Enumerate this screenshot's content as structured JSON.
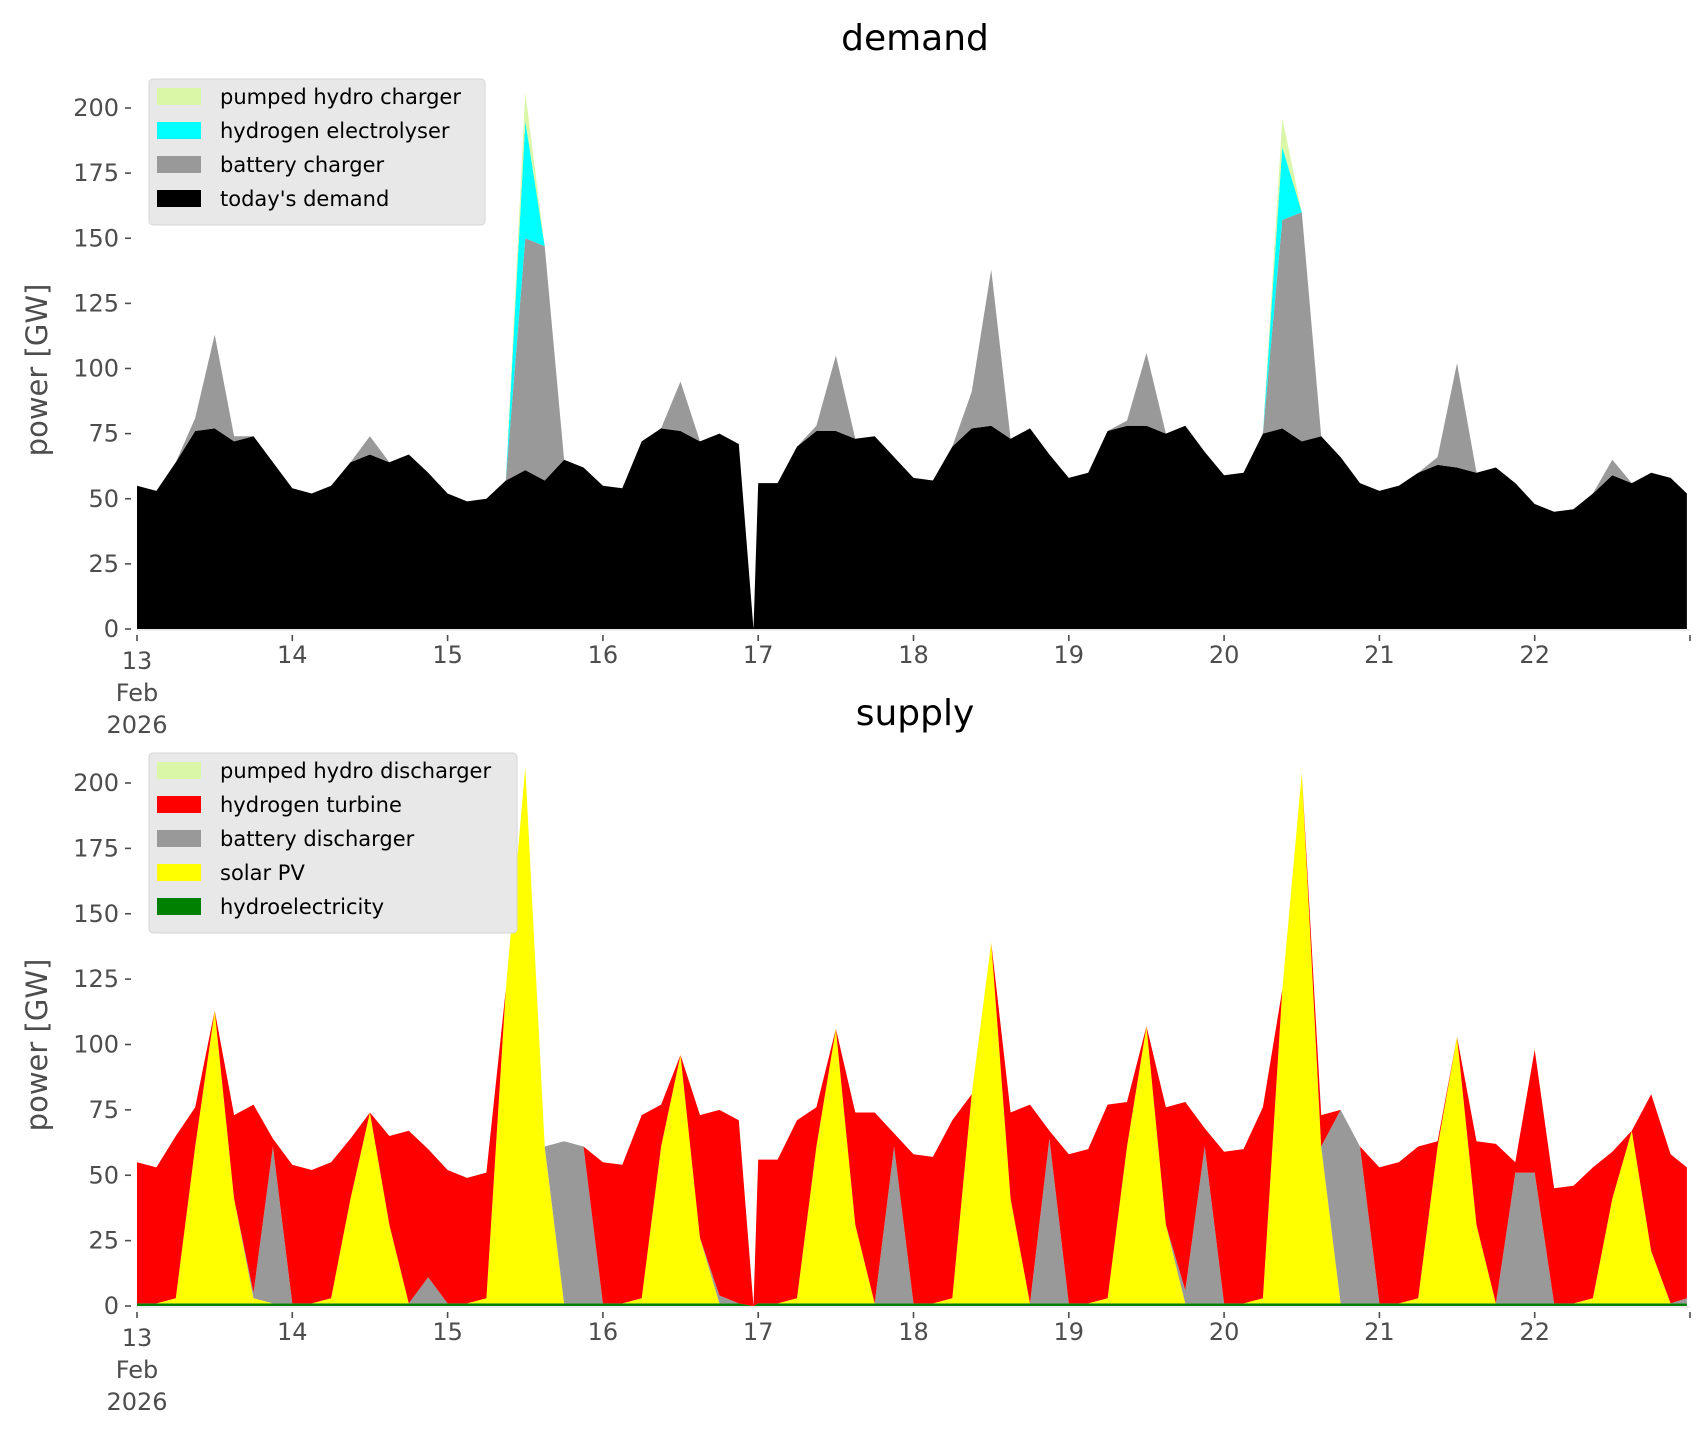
{
  "chart_data": [
    {
      "type": "area",
      "stacked": true,
      "title": "demand",
      "xlabel": "",
      "ylabel": "power [GW]",
      "ylim": [
        0,
        210
      ],
      "xlim": [
        13,
        23
      ],
      "yticks": [
        0,
        25,
        50,
        75,
        100,
        125,
        150,
        175,
        200
      ],
      "xticks": [
        13,
        14,
        15,
        16,
        17,
        18,
        19,
        20,
        21,
        22,
        23
      ],
      "xtick_labels": [
        "13",
        "14",
        "15",
        "16",
        "17",
        "18",
        "19",
        "20",
        "21",
        "22",
        ""
      ],
      "xtick_sub_labels": [
        "Feb",
        "2026"
      ],
      "grid": false,
      "legend_position": "top-left",
      "gaps": [
        [
          16.875,
          16.97
        ]
      ],
      "x": [
        13.0,
        13.125,
        13.25,
        13.375,
        13.5,
        13.625,
        13.75,
        13.875,
        14.0,
        14.125,
        14.25,
        14.375,
        14.5,
        14.625,
        14.75,
        14.875,
        15.0,
        15.125,
        15.25,
        15.375,
        15.5,
        15.625,
        15.75,
        15.875,
        16.0,
        16.125,
        16.25,
        16.375,
        16.5,
        16.625,
        16.75,
        16.875,
        16.97,
        17.0,
        17.125,
        17.25,
        17.375,
        17.5,
        17.625,
        17.75,
        17.875,
        18.0,
        18.125,
        18.25,
        18.375,
        18.5,
        18.625,
        18.75,
        18.875,
        19.0,
        19.125,
        19.25,
        19.375,
        19.5,
        19.625,
        19.75,
        19.875,
        20.0,
        20.125,
        20.25,
        20.375,
        20.5,
        20.625,
        20.75,
        20.875,
        21.0,
        21.125,
        21.25,
        21.375,
        21.5,
        21.625,
        21.75,
        21.875,
        22.0,
        22.125,
        22.25,
        22.375,
        22.5,
        22.625,
        22.75,
        22.875,
        22.98
      ],
      "series": [
        {
          "name": "today's demand",
          "color": "#000000",
          "values": [
            55,
            53,
            64,
            76,
            77,
            72,
            74,
            64,
            54,
            52,
            55,
            64,
            67,
            64,
            67,
            60,
            52,
            49,
            50,
            57,
            61,
            57,
            65,
            62,
            55,
            54,
            72,
            77,
            76,
            72,
            75,
            71,
            0,
            56,
            56,
            70,
            76,
            76,
            73,
            74,
            66,
            58,
            57,
            70,
            77,
            78,
            73,
            77,
            67,
            58,
            60,
            76,
            78,
            78,
            75,
            78,
            68,
            59,
            60,
            75,
            77,
            72,
            74,
            66,
            56,
            53,
            55,
            60,
            63,
            62,
            60,
            62,
            56,
            48,
            45,
            46,
            52,
            59,
            56,
            60,
            58,
            52
          ]
        },
        {
          "name": "battery charger",
          "color": "#999999",
          "values": [
            0,
            0,
            0,
            5,
            36,
            2,
            0,
            0,
            0,
            0,
            0,
            0,
            7,
            0,
            0,
            0,
            0,
            0,
            0,
            0,
            89,
            90,
            0,
            0,
            0,
            0,
            0,
            0,
            19,
            0,
            0,
            0,
            0,
            0,
            0,
            0,
            2,
            29,
            0,
            0,
            0,
            0,
            0,
            0,
            14,
            60,
            0,
            0,
            0,
            0,
            0,
            0,
            2,
            28,
            0,
            0,
            0,
            0,
            0,
            0,
            80,
            88,
            0,
            0,
            0,
            0,
            0,
            0,
            3,
            40,
            0,
            0,
            0,
            0,
            0,
            0,
            0,
            6,
            0,
            0,
            0,
            0
          ]
        },
        {
          "name": "hydrogen electrolyser",
          "color": "#00ffff",
          "values": [
            0,
            0,
            0,
            0,
            0,
            0,
            0,
            0,
            0,
            0,
            0,
            0,
            0,
            0,
            0,
            0,
            0,
            0,
            0,
            0,
            45,
            0,
            0,
            0,
            0,
            0,
            0,
            0,
            0,
            0,
            0,
            0,
            0,
            0,
            0,
            0,
            0,
            0,
            0,
            0,
            0,
            0,
            0,
            0,
            0,
            0,
            0,
            0,
            0,
            0,
            0,
            0,
            0,
            0,
            0,
            0,
            0,
            0,
            0,
            0,
            28,
            0,
            0,
            0,
            0,
            0,
            0,
            0,
            0,
            0,
            0,
            0,
            0,
            0,
            0,
            0,
            0,
            0,
            0,
            0,
            0,
            0
          ]
        },
        {
          "name": "pumped hydro charger",
          "color": "#d9f7a6",
          "values": [
            0,
            0,
            0,
            0,
            0,
            0,
            0,
            0,
            0,
            0,
            0,
            0,
            0,
            0,
            0,
            0,
            0,
            0,
            0,
            0,
            11,
            0,
            0,
            0,
            0,
            0,
            0,
            0,
            0,
            0,
            0,
            0,
            0,
            0,
            0,
            0,
            0,
            0,
            0,
            0,
            0,
            0,
            0,
            0,
            0,
            0,
            0,
            0,
            0,
            0,
            0,
            0,
            0,
            0,
            0,
            0,
            0,
            0,
            0,
            0,
            11,
            0,
            0,
            0,
            0,
            0,
            0,
            0,
            0,
            0,
            0,
            0,
            0,
            0,
            0,
            0,
            0,
            0,
            0,
            0,
            0,
            0
          ]
        }
      ],
      "legend": [
        "pumped hydro charger",
        "hydrogen electrolyser",
        "battery charger",
        "today's demand"
      ]
    },
    {
      "type": "area",
      "stacked": true,
      "title": "supply",
      "xlabel": "",
      "ylabel": "power [GW]",
      "ylim": [
        0,
        210
      ],
      "xlim": [
        13,
        23
      ],
      "yticks": [
        0,
        25,
        50,
        75,
        100,
        125,
        150,
        175,
        200
      ],
      "xticks": [
        13,
        14,
        15,
        16,
        17,
        18,
        19,
        20,
        21,
        22,
        23
      ],
      "xtick_labels": [
        "13",
        "14",
        "15",
        "16",
        "17",
        "18",
        "19",
        "20",
        "21",
        "22",
        ""
      ],
      "xtick_sub_labels": [
        "Feb",
        "2026"
      ],
      "grid": false,
      "legend_position": "top-left",
      "gaps": [
        [
          16.875,
          16.97
        ]
      ],
      "x": [
        13.0,
        13.125,
        13.25,
        13.375,
        13.5,
        13.625,
        13.75,
        13.875,
        14.0,
        14.125,
        14.25,
        14.375,
        14.5,
        14.625,
        14.75,
        14.875,
        15.0,
        15.125,
        15.25,
        15.375,
        15.5,
        15.625,
        15.75,
        15.875,
        16.0,
        16.125,
        16.25,
        16.375,
        16.5,
        16.625,
        16.75,
        16.875,
        16.97,
        17.0,
        17.125,
        17.25,
        17.375,
        17.5,
        17.625,
        17.75,
        17.875,
        18.0,
        18.125,
        18.25,
        18.375,
        18.5,
        18.625,
        18.75,
        18.875,
        19.0,
        19.125,
        19.25,
        19.375,
        19.5,
        19.625,
        19.75,
        19.875,
        20.0,
        20.125,
        20.25,
        20.375,
        20.5,
        20.625,
        20.75,
        20.875,
        21.0,
        21.125,
        21.25,
        21.375,
        21.5,
        21.625,
        21.75,
        21.875,
        22.0,
        22.125,
        22.25,
        22.375,
        22.5,
        22.625,
        22.75,
        22.875,
        22.98
      ],
      "series": [
        {
          "name": "hydroelectricity",
          "color": "#008000",
          "values": [
            1,
            1,
            1,
            1,
            1,
            1,
            1,
            1,
            1,
            1,
            1,
            1,
            1,
            1,
            1,
            1,
            1,
            1,
            1,
            1,
            1,
            1,
            1,
            1,
            1,
            1,
            1,
            1,
            1,
            1,
            1,
            1,
            0,
            1,
            1,
            1,
            1,
            1,
            1,
            1,
            1,
            1,
            1,
            1,
            1,
            1,
            1,
            1,
            1,
            1,
            1,
            1,
            1,
            1,
            1,
            1,
            1,
            1,
            1,
            1,
            1,
            1,
            1,
            1,
            1,
            1,
            1,
            1,
            1,
            1,
            1,
            1,
            1,
            1,
            1,
            1,
            1,
            1,
            1,
            1,
            1,
            1
          ]
        },
        {
          "name": "solar PV",
          "color": "#ffff00",
          "values": [
            0,
            0,
            2,
            60,
            112,
            40,
            2,
            0,
            0,
            0,
            2,
            40,
            73,
            30,
            0,
            0,
            0,
            0,
            2,
            120,
            205,
            60,
            0,
            0,
            0,
            0,
            2,
            60,
            95,
            25,
            0,
            0,
            0,
            0,
            0,
            2,
            60,
            105,
            30,
            0,
            0,
            0,
            0,
            2,
            80,
            138,
            40,
            0,
            0,
            0,
            0,
            2,
            60,
            106,
            30,
            0,
            0,
            0,
            0,
            2,
            120,
            203,
            60,
            0,
            0,
            0,
            0,
            2,
            60,
            102,
            30,
            0,
            0,
            0,
            0,
            0,
            2,
            40,
            66,
            20,
            0,
            0
          ]
        },
        {
          "name": "battery discharger",
          "color": "#999999",
          "values": [
            0,
            0,
            0,
            0,
            0,
            0,
            2,
            60,
            0,
            0,
            0,
            0,
            0,
            0,
            0,
            10,
            0,
            0,
            0,
            0,
            0,
            0,
            62,
            60,
            0,
            0,
            0,
            0,
            0,
            0,
            3,
            0,
            0,
            0,
            0,
            0,
            0,
            0,
            0,
            0,
            60,
            0,
            0,
            0,
            0,
            0,
            0,
            0,
            63,
            0,
            0,
            0,
            0,
            0,
            0,
            5,
            60,
            0,
            0,
            0,
            0,
            0,
            0,
            74,
            60,
            0,
            0,
            0,
            0,
            0,
            0,
            0,
            50,
            50,
            0,
            0,
            0,
            0,
            0,
            0,
            0,
            2
          ]
        },
        {
          "name": "hydrogen turbine",
          "color": "#ff0000",
          "values": [
            54,
            52,
            62,
            15,
            0,
            32,
            72,
            3,
            53,
            51,
            52,
            23,
            0,
            34,
            66,
            49,
            51,
            48,
            48,
            0,
            0,
            0,
            0,
            0,
            54,
            53,
            70,
            16,
            0,
            47,
            71,
            70,
            0,
            55,
            55,
            68,
            15,
            0,
            43,
            73,
            5,
            57,
            56,
            68,
            0,
            0,
            33,
            76,
            3,
            57,
            59,
            74,
            17,
            0,
            45,
            72,
            7,
            58,
            59,
            73,
            0,
            0,
            12,
            0,
            0,
            52,
            54,
            58,
            2,
            0,
            32,
            61,
            4,
            47,
            44,
            45,
            50,
            18,
            0,
            60,
            57,
            50
          ]
        },
        {
          "name": "pumped hydro discharger",
          "color": "#d9f7a6",
          "values": [
            0,
            0,
            0,
            0,
            0,
            0,
            0,
            0,
            0,
            0,
            0,
            0,
            0,
            0,
            0,
            0,
            0,
            0,
            0,
            0,
            0,
            0,
            0,
            0,
            0,
            0,
            0,
            0,
            0,
            0,
            0,
            0,
            0,
            0,
            0,
            0,
            0,
            0,
            0,
            0,
            0,
            0,
            0,
            0,
            0,
            0,
            0,
            0,
            0,
            0,
            0,
            0,
            0,
            0,
            0,
            0,
            0,
            0,
            0,
            0,
            0,
            0,
            0,
            0,
            0,
            0,
            0,
            0,
            0,
            0,
            0,
            0,
            0,
            0,
            0,
            0,
            0,
            0,
            0,
            0,
            0,
            0
          ]
        }
      ],
      "legend": [
        "pumped hydro discharger",
        "hydrogen turbine",
        "battery discharger",
        "solar PV",
        "hydroelectricity"
      ]
    }
  ]
}
